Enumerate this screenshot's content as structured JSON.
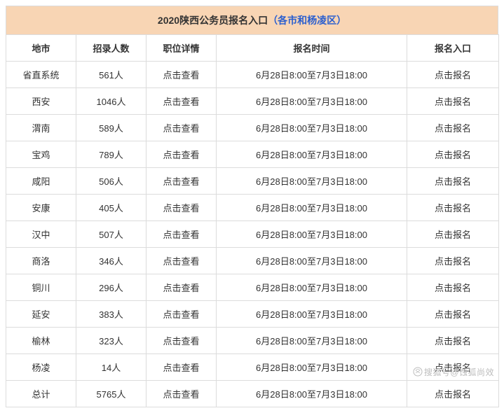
{
  "title": {
    "prefix": "2020陕西公务员报名入口",
    "paren_open": "（",
    "link_text": "各市和杨凌区",
    "paren_close": "）"
  },
  "headers": {
    "city": "地市",
    "count": "招录人数",
    "detail": "职位详情",
    "time": "报名时间",
    "entry": "报名入口"
  },
  "common": {
    "detail_link": "点击查看",
    "entry_link": "点击报名",
    "reg_time": "6月28日8:00至7月3日18:00"
  },
  "rows": [
    {
      "city": "省直系统",
      "count": "561人"
    },
    {
      "city": "西安",
      "count": "1046人"
    },
    {
      "city": "渭南",
      "count": "589人"
    },
    {
      "city": "宝鸡",
      "count": "789人"
    },
    {
      "city": "咸阳",
      "count": "506人"
    },
    {
      "city": "安康",
      "count": "405人"
    },
    {
      "city": "汉中",
      "count": "507人"
    },
    {
      "city": "商洛",
      "count": "346人"
    },
    {
      "city": "铜川",
      "count": "296人"
    },
    {
      "city": "延安",
      "count": "383人"
    },
    {
      "city": "榆林",
      "count": "323人"
    },
    {
      "city": "杨凌",
      "count": "14人"
    },
    {
      "city": "总计",
      "count": "5765人"
    }
  ],
  "watermark": {
    "text": "搜狐号@蚀狐尚效"
  },
  "style": {
    "title_bg": "#f8d5b4",
    "border_color": "#dcdcdc",
    "text_color": "#333333",
    "link_color": "#2b5fcf",
    "watermark_color": "#bdbdbd",
    "font_size_title": 14,
    "font_size_cell": 13
  }
}
